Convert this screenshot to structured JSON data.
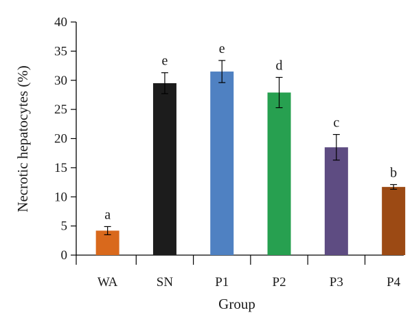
{
  "chart_data": {
    "type": "bar",
    "xlabel": "Group",
    "ylabel": "Necrotic hepatocytes (%)",
    "ylim": [
      0,
      40
    ],
    "yticks": [
      0,
      5,
      10,
      15,
      20,
      25,
      30,
      35,
      40
    ],
    "categories": [
      "WA",
      "SN",
      "P1",
      "P2",
      "P3",
      "P4"
    ],
    "values": [
      4.2,
      29.5,
      31.5,
      27.9,
      18.5,
      11.7
    ],
    "errors": [
      0.7,
      1.8,
      1.9,
      2.6,
      2.2,
      0.4
    ],
    "significance": [
      "a",
      "e",
      "e",
      "d",
      "c",
      "b"
    ],
    "colors": [
      "#d9691c",
      "#1c1c1c",
      "#4f81c2",
      "#27a050",
      "#5e4c82",
      "#9c4a14"
    ],
    "grid": false,
    "legend": "none"
  }
}
